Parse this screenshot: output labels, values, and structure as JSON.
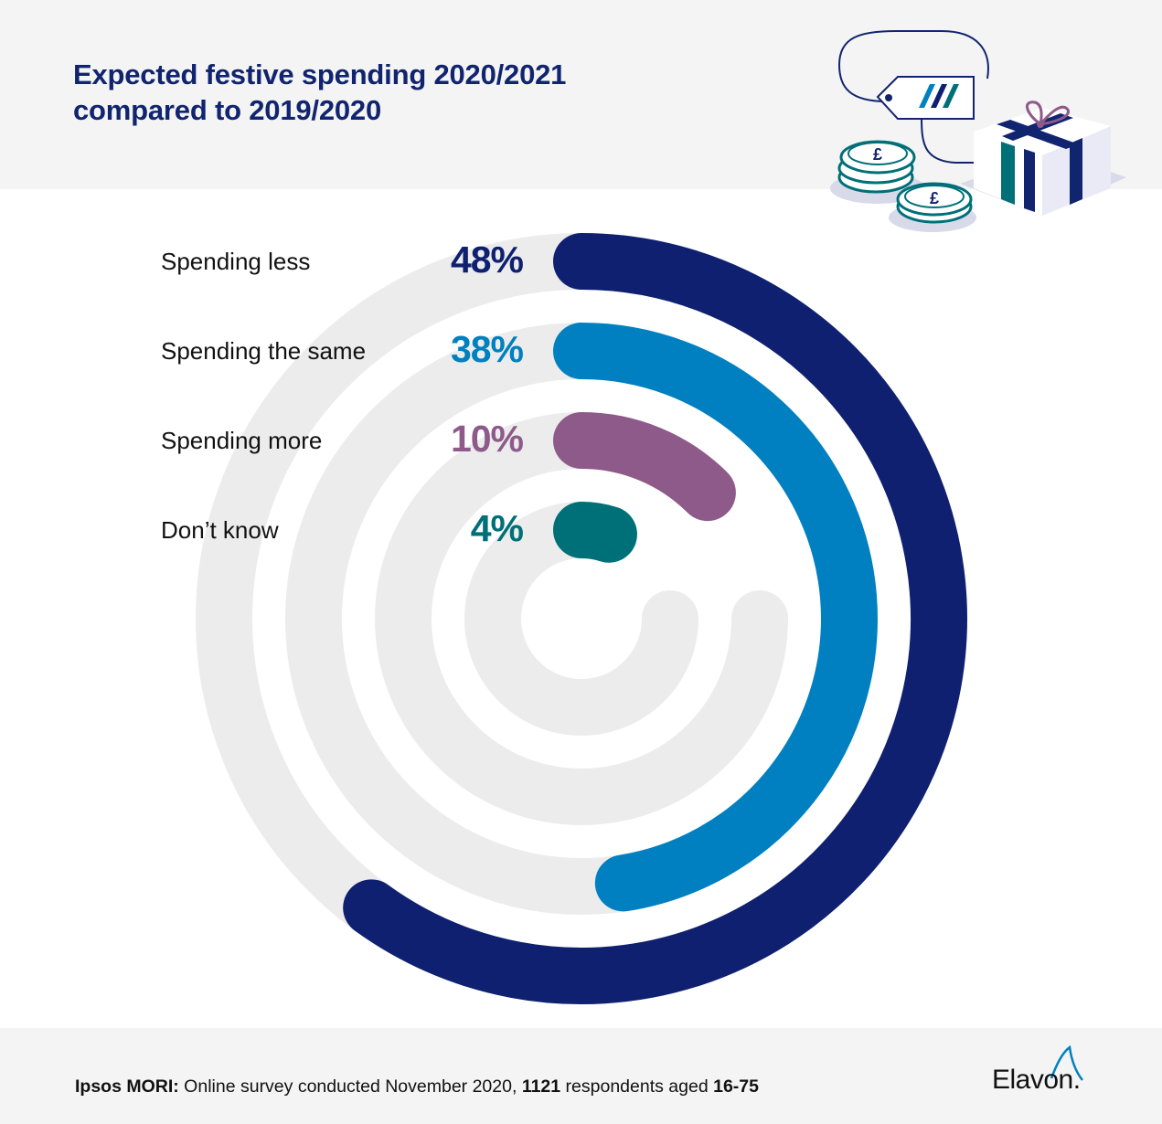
{
  "header": {
    "title_line1": "Expected festive spending 2020/2021",
    "title_line2": "compared to 2019/2020"
  },
  "chart_data": {
    "type": "radial-bar",
    "title": "Expected festive spending 2020/2021 compared to 2019/2020",
    "unit": "%",
    "max": 60,
    "categories": [
      "Spending less",
      "Spending the same",
      "Spending more",
      "Don’t know"
    ],
    "values": [
      48,
      38,
      10,
      4
    ],
    "value_labels": [
      "48%",
      "38%",
      "10%",
      "4%"
    ],
    "colors": [
      "#0f2070",
      "#0080c0",
      "#8e5a8a",
      "#007078"
    ],
    "track_color": "#ececec"
  },
  "footer": {
    "source_bold": "Ipsos MORI:",
    "source_text_1": " Online survey conducted November 2020, ",
    "respondents": "1121",
    "source_text_2": " respondents aged ",
    "age_range": "16-75",
    "logo_text": "Elavon."
  },
  "illustration": {
    "icons": [
      "price-tag-icon",
      "coin-stack-icon",
      "gift-box-icon"
    ],
    "currency_symbol": "£"
  }
}
